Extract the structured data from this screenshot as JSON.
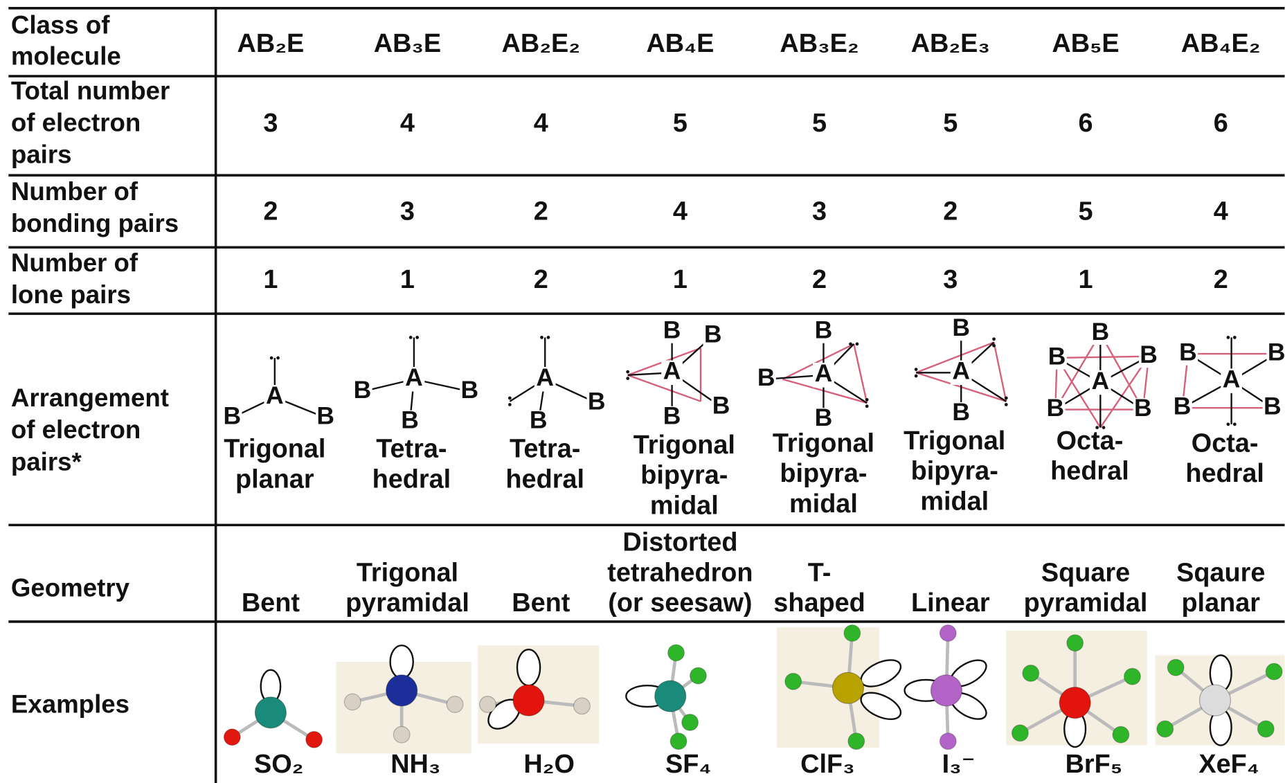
{
  "diagram_atoms": {
    "central": "A",
    "outer": "B"
  },
  "table": {
    "row_labels": [
      [
        "Class of",
        "molecule"
      ],
      [
        "Total number",
        "of electron",
        "pairs"
      ],
      [
        "Number of",
        "bonding pairs"
      ],
      [
        "Number of",
        "lone pairs"
      ],
      [
        "Arrangement",
        "of electron",
        "pairs*"
      ],
      [
        "Geometry"
      ],
      [
        "Examples"
      ]
    ],
    "columns": [
      {
        "class": "AB₂E",
        "total_pairs": 3,
        "bonding_pairs": 2,
        "lone_pairs": 1,
        "arrangement": [
          "Trigonal",
          "planar"
        ],
        "geometry": [
          "Bent"
        ],
        "example": "SO₂"
      },
      {
        "class": "AB₃E",
        "total_pairs": 4,
        "bonding_pairs": 3,
        "lone_pairs": 1,
        "arrangement": [
          "Tetra-",
          "hedral"
        ],
        "geometry": [
          "Trigonal",
          "pyramidal"
        ],
        "example": "NH₃"
      },
      {
        "class": "AB₂E₂",
        "total_pairs": 4,
        "bonding_pairs": 2,
        "lone_pairs": 2,
        "arrangement": [
          "Tetra-",
          "hedral"
        ],
        "geometry": [
          "Bent"
        ],
        "example": "H₂O"
      },
      {
        "class": "AB₄E",
        "total_pairs": 5,
        "bonding_pairs": 4,
        "lone_pairs": 1,
        "arrangement": [
          "Trigonal",
          "bipyra-",
          "midal"
        ],
        "geometry": [
          "Distorted",
          "tetrahedron",
          "(or seesaw)"
        ],
        "example": "SF₄"
      },
      {
        "class": "AB₃E₂",
        "total_pairs": 5,
        "bonding_pairs": 3,
        "lone_pairs": 2,
        "arrangement": [
          "Trigonal",
          "bipyra-",
          "midal"
        ],
        "geometry": [
          "T-",
          "shaped"
        ],
        "example": "ClF₃"
      },
      {
        "class": "AB₂E₃",
        "total_pairs": 5,
        "bonding_pairs": 2,
        "lone_pairs": 3,
        "arrangement": [
          "Trigonal",
          "bipyra-",
          "midal"
        ],
        "geometry": [
          "Linear"
        ],
        "example": "I₃⁻"
      },
      {
        "class": "AB₅E",
        "total_pairs": 6,
        "bonding_pairs": 5,
        "lone_pairs": 1,
        "arrangement": [
          "Octa-",
          "hedral"
        ],
        "geometry": [
          "Square",
          "pyramidal"
        ],
        "example": "BrF₅"
      },
      {
        "class": "AB₄E₂",
        "total_pairs": 6,
        "bonding_pairs": 4,
        "lone_pairs": 2,
        "arrangement": [
          "Octa-",
          "hedral"
        ],
        "geometry": [
          "Sqaure",
          "planar"
        ],
        "example": "XeF₄"
      }
    ]
  }
}
